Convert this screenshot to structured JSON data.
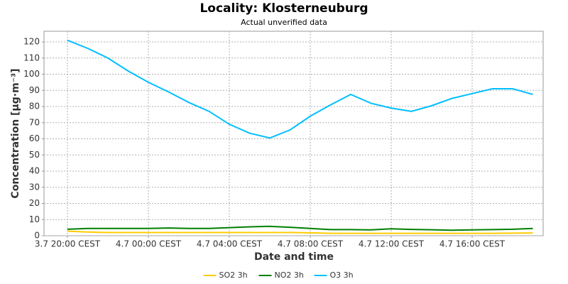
{
  "chart_data": {
    "type": "line",
    "title": "Locality: Klosterneuburg",
    "subtitle": "Actual unverified data",
    "x_label": "Date and time",
    "y_label": "Concentration [µg·m⁻³]",
    "categories": [
      "3.7 20:00 CEST",
      null,
      null,
      null,
      "4.7 00:00 CEST",
      null,
      null,
      null,
      "4.7 04:00 CEST",
      null,
      null,
      null,
      "4.7 08:00 CEST",
      null,
      null,
      null,
      "4.7 12:00 CEST",
      null,
      null,
      null,
      "4.7 16:00 CEST",
      null,
      null,
      null
    ],
    "series": [
      {
        "name": "SO2 3h",
        "color": "#ffcc00",
        "values": [
          2.8,
          2.3,
          2,
          2,
          2,
          2,
          2,
          2,
          2,
          2,
          2,
          2,
          1.8,
          1.5,
          1.5,
          1.5,
          1.5,
          1.5,
          1.5,
          1.5,
          1.5,
          1.5,
          1.6,
          1.7
        ]
      },
      {
        "name": "NO2 3h",
        "color": "#008000",
        "values": [
          4,
          4.5,
          4.5,
          4.5,
          4.5,
          4.8,
          4.5,
          4.5,
          5,
          5.5,
          5.8,
          5.2,
          4.5,
          3.8,
          3.8,
          3.6,
          4.3,
          3.9,
          3.7,
          3.4,
          3.6,
          3.8,
          4,
          4.5
        ]
      },
      {
        "name": "O3 3h",
        "color": "#00bfff",
        "values": [
          121,
          116,
          110,
          102,
          95,
          89,
          82.5,
          77,
          69,
          63.5,
          60.5,
          65.5,
          74,
          81,
          87.5,
          82,
          79,
          77,
          80.5,
          85,
          88,
          91,
          91,
          87.5
        ]
      }
    ],
    "ylim": [
      0,
      126.6
    ],
    "yticks": [
      0,
      10,
      20,
      30,
      40,
      50,
      60,
      70,
      80,
      90,
      100,
      110,
      120
    ],
    "grid": true,
    "legend": "bottom"
  }
}
